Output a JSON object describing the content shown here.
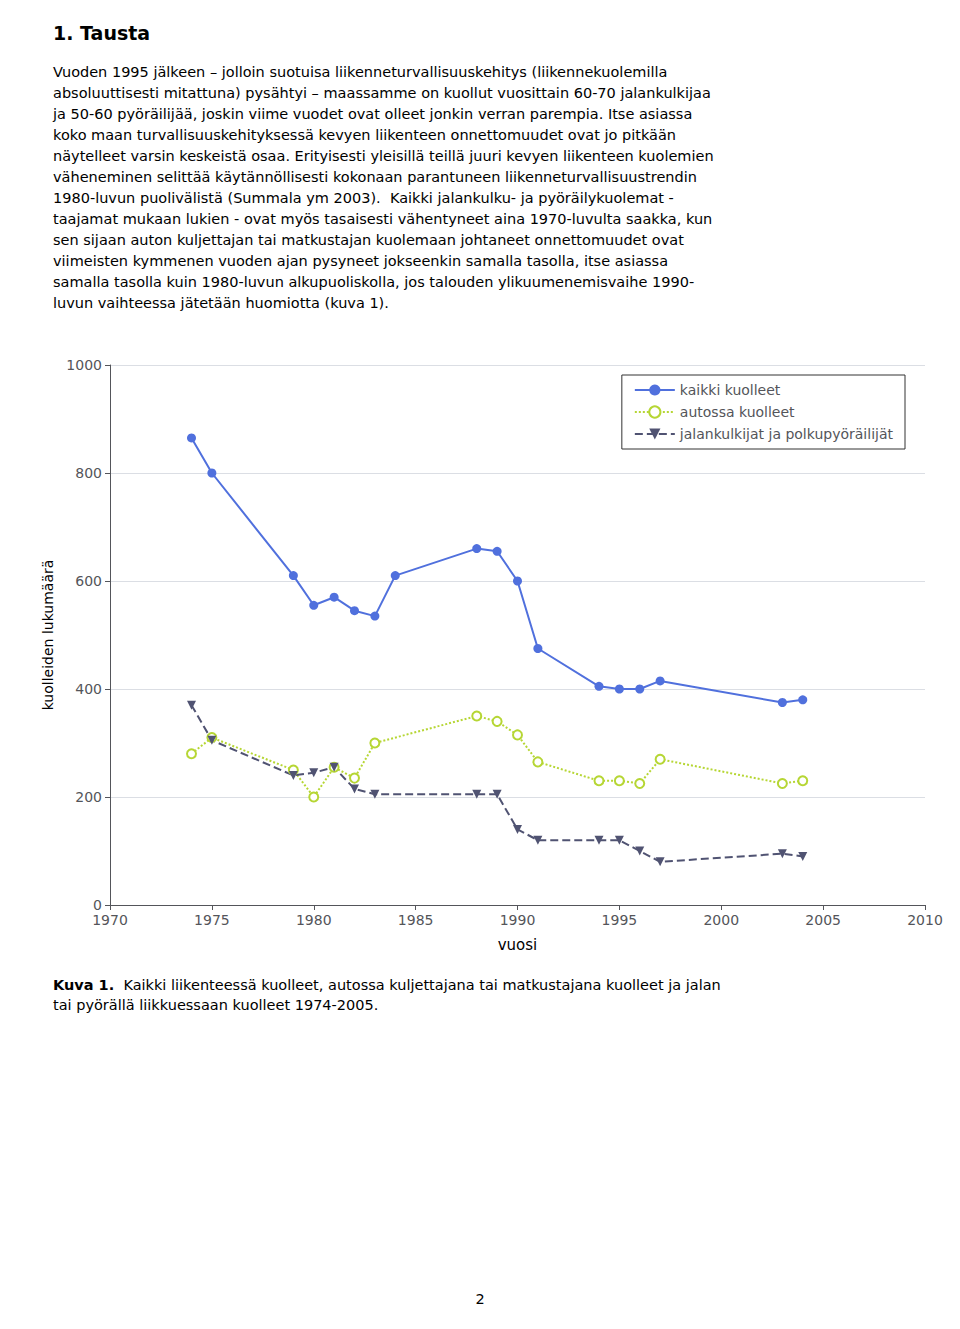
{
  "heading": "1. Tausta",
  "body_text": "Vuoden 1995 jälkeen – jolloin suotuisa liikenneturvallisuuskehitys (liikennekuolemilla\nabsoluuttisesti mitattuna) pysähtyi – maassamme on kuollut vuosittain 60-70 jalankulkijaa\nja 50-60 pyöräilijää, joskin viime vuodet ovat olleet jonkin verran parempia. Itse asiassa\nkoko maan turvallisuuskehityksessä kevyen liikenteen onnettomuudet ovat jo pitkään\nnäytelleet varsin keskeistä osaa. Erityisesti yleisillä teillä juuri kevyen liikenteen kuolemien\nväheneminen selittää käytännöllisesti kokonaan parantuneen liikenneturvallisuustrendin\n1980-luvun puolivälistä (Summala ym 2003).  Kaikki jalankulku- ja pyöräilykuolemat -\ntaajamat mukaan lukien - ovat myös tasaisesti vähentyneet aina 1970-luvulta saakka, kun\nsen sijaan auton kuljettajan tai matkustajan kuolemaan johtaneet onnettomuudet ovat\nviimeisten kymmenen vuoden ajan pysyneet jokseenkin samalla tasolla, itse asiassa\nsamalla tasolla kuin 1980-luvun alkupuoliskolla, jos talouden ylikuumenemisvaihe 1990-\nluvun vaihteessa jätetään huomiotta (kuva 1).",
  "caption_label": "Kuva 1.",
  "caption_text": "  Kaikki liikenteessä kuolleet, autossa kuljettajana tai matkustajana kuolleet ja jalan\ntai pyörällä liikkuessaan kuolleet 1974-2005.",
  "page_number": "2",
  "chart_data": {
    "type": "line",
    "xlabel": "vuosi",
    "ylabel": "kuolleiden lukumäärä",
    "xlim": [
      1970,
      2010
    ],
    "xticks": [
      1970,
      1975,
      1980,
      1985,
      1990,
      1995,
      2000,
      2005,
      2010
    ],
    "ylim": [
      0,
      1000
    ],
    "yticks": [
      0,
      200,
      400,
      600,
      800,
      1000
    ],
    "grid": true,
    "legend": "upper right",
    "series": [
      {
        "name": "kaikki kuolleet",
        "marker": "circle",
        "line_style": "solid",
        "x": [
          1974,
          1975,
          1979,
          1980,
          1981,
          1982,
          1983,
          1984,
          1988,
          1989,
          1990,
          1991,
          1994,
          1995,
          1996,
          1997,
          2003,
          2004
        ],
        "values": [
          865,
          800,
          610,
          555,
          570,
          545,
          535,
          610,
          660,
          655,
          600,
          475,
          405,
          400,
          400,
          415,
          375,
          380
        ]
      },
      {
        "name": "autossa kuolleet",
        "marker": "open_circle",
        "line_style": "dotted",
        "x": [
          1974,
          1975,
          1979,
          1980,
          1981,
          1982,
          1983,
          1988,
          1989,
          1990,
          1991,
          1994,
          1995,
          1996,
          1997,
          2003,
          2004
        ],
        "values": [
          280,
          310,
          250,
          200,
          255,
          235,
          300,
          350,
          340,
          315,
          265,
          230,
          230,
          225,
          270,
          225,
          230
        ]
      },
      {
        "name": "jalankulkijat ja polkupyöräilijät",
        "marker": "triangle_down",
        "line_style": "dashed",
        "x": [
          1974,
          1975,
          1979,
          1980,
          1981,
          1982,
          1983,
          1988,
          1989,
          1990,
          1991,
          1994,
          1995,
          1996,
          1997,
          2003,
          2004
        ],
        "values": [
          370,
          305,
          240,
          245,
          255,
          215,
          205,
          205,
          205,
          140,
          120,
          120,
          120,
          100,
          80,
          95,
          90
        ]
      }
    ]
  }
}
